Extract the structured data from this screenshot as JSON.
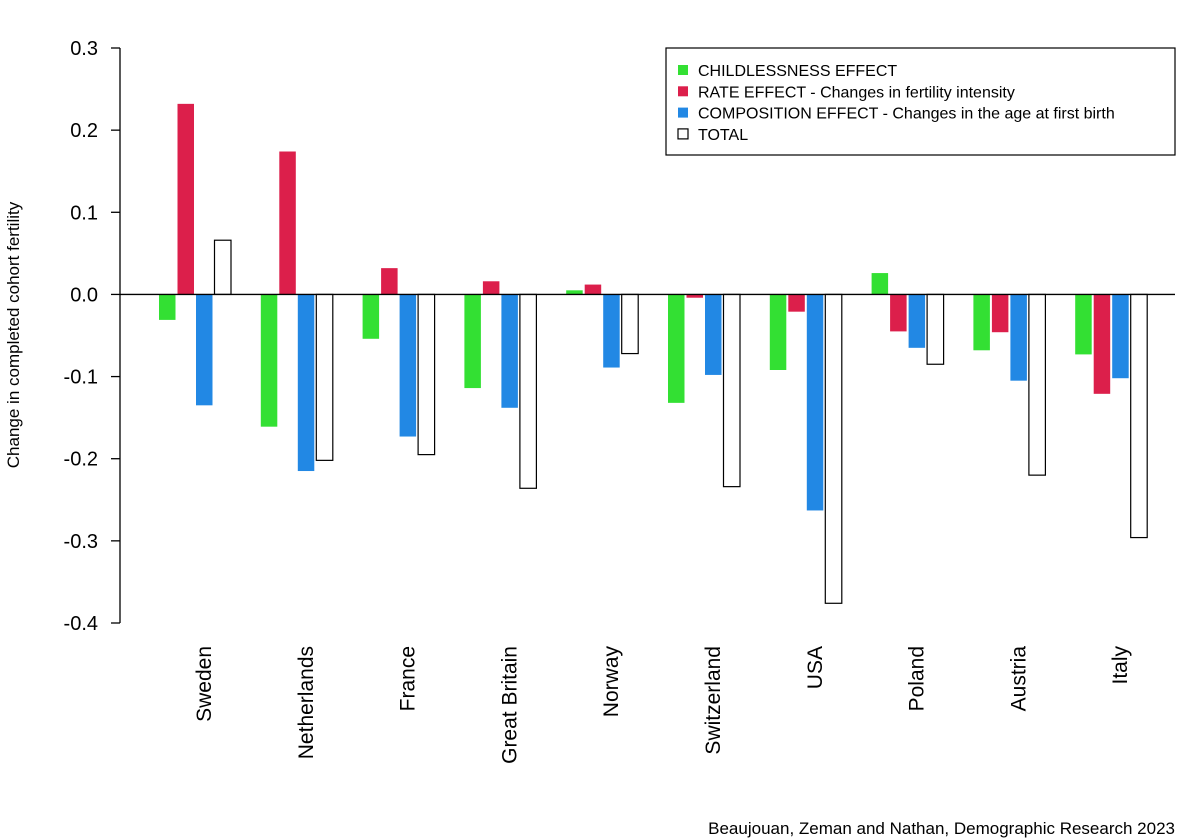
{
  "chart_data": {
    "type": "bar",
    "title": "",
    "xlabel": "",
    "ylabel": "Change in completed cohort fertility",
    "ylim": [
      -0.4,
      0.3
    ],
    "yticks": [
      0.3,
      0.2,
      0.1,
      0.0,
      -0.1,
      -0.2,
      -0.3,
      -0.4
    ],
    "ytick_labels": [
      "0.3",
      "0.2",
      "0.1",
      "0.0",
      "-0.1",
      "-0.2",
      "-0.3",
      "-0.4"
    ],
    "categories": [
      "Sweden",
      "Netherlands",
      "France",
      "Great Britain",
      "Norway",
      "Switzerland",
      "USA",
      "Poland",
      "Austria",
      "Italy"
    ],
    "series": [
      {
        "name": "CHILDLESSNESS EFFECT",
        "color": "#33e033",
        "fill": "#33e033",
        "values": [
          -0.031,
          -0.161,
          -0.054,
          -0.114,
          0.005,
          -0.132,
          -0.092,
          0.026,
          -0.068,
          -0.073
        ]
      },
      {
        "name": "RATE EFFECT - Changes in fertility intensity",
        "color": "#dc1f4b",
        "fill": "#dc1f4b",
        "values": [
          0.232,
          0.174,
          0.032,
          0.016,
          0.012,
          -0.004,
          -0.021,
          -0.045,
          -0.046,
          -0.121
        ]
      },
      {
        "name": "COMPOSITION EFFECT - Changes in the age at first birth",
        "color": "#2288e4",
        "fill": "#2288e4",
        "values": [
          -0.135,
          -0.215,
          -0.173,
          -0.138,
          -0.089,
          -0.098,
          -0.263,
          -0.065,
          -0.105,
          -0.102
        ]
      },
      {
        "name": "TOTAL",
        "color": "#000000",
        "fill": "#ffffff",
        "values": [
          0.066,
          -0.202,
          -0.195,
          -0.236,
          -0.072,
          -0.234,
          -0.376,
          -0.085,
          -0.22,
          -0.296
        ]
      }
    ],
    "legend_position": "top-right",
    "zero_line": true,
    "source": "Beaujouan, Zeman and Nathan, Demographic Research 2023"
  }
}
